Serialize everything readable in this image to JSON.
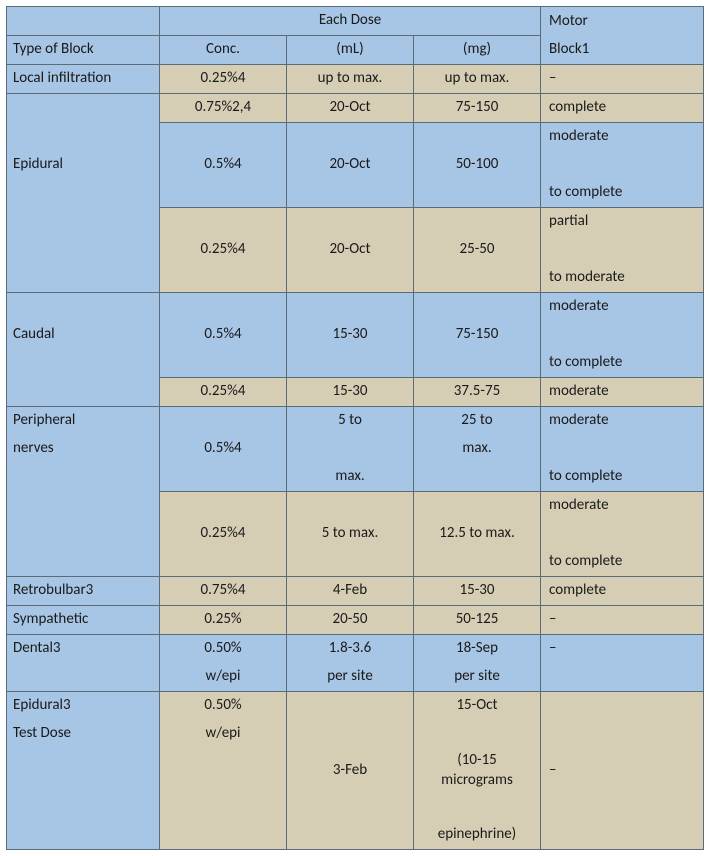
{
  "header": {
    "each_dose": "Each Dose",
    "motor": "Motor",
    "type": "Type of Block",
    "conc": "Conc.",
    "ml": "(mL)",
    "mg": "(mg)",
    "block1": "Block1"
  },
  "rows": {
    "local": {
      "type": "Local infiltration",
      "conc": "0.25%4",
      "ml": "up to max.",
      "mg": "up to max.",
      "motor": "–"
    },
    "epidural": {
      "label": "Epidural",
      "r1": {
        "conc": "0.75%2,4",
        "ml": "20-Oct",
        "mg": "75-150",
        "motor": "complete"
      },
      "r2": {
        "conc": "0.5%4",
        "ml": "20-Oct",
        "mg": "50-100",
        "motor_top": "moderate",
        "motor_bot": "to complete"
      },
      "r3": {
        "conc": "0.25%4",
        "ml": "20-Oct",
        "mg": "25-50",
        "motor_top": "partial",
        "motor_bot": "to moderate"
      }
    },
    "caudal": {
      "label": "Caudal",
      "r1": {
        "conc": "0.5%4",
        "ml": "15-30",
        "mg": "75-150",
        "motor_top": "moderate",
        "motor_bot": "to complete"
      },
      "r2": {
        "conc": "0.25%4",
        "ml": "15-30",
        "mg": "37.5-75",
        "motor": "moderate"
      }
    },
    "periph": {
      "label_top": "Peripheral",
      "label_bot": "nerves",
      "r1": {
        "conc": "0.5%4",
        "ml_top": "5 to",
        "ml_bot": "max.",
        "mg_top": "25 to",
        "mg_mid": "max.",
        "motor_top": "moderate",
        "motor_bot": "to complete"
      },
      "r2": {
        "conc": "0.25%4",
        "ml": "5 to max.",
        "mg": "12.5 to max.",
        "motor_top": "moderate",
        "motor_bot": "to complete"
      }
    },
    "retro": {
      "type": "Retrobulbar3",
      "conc": "0.75%4",
      "ml": "4-Feb",
      "mg": "15-30",
      "motor": "complete"
    },
    "symp": {
      "type": "Sympathetic",
      "conc": "0.25%",
      "ml": "20-50",
      "mg": "50-125",
      "motor": "–"
    },
    "dental": {
      "type": "Dental3",
      "conc_top": "0.50%",
      "conc_bot": "w/epi",
      "ml_top": "1.8-3.6",
      "ml_bot": "per site",
      "mg_top": "18-Sep",
      "mg_bot": "per site",
      "motor": "–"
    },
    "epi_test": {
      "type_top": "Epidural3",
      "type_bot": "Test Dose",
      "conc_top": "0.50%",
      "conc_bot": "w/epi",
      "ml": "3-Feb",
      "mg_top": "15-Oct",
      "mg_mid": "(10-15 micrograms",
      "mg_bot": "epinephrine)",
      "motor": "–"
    }
  },
  "colors": {
    "blue": "#a7c5e5",
    "tan": "#d6ceb4",
    "border": "#5b6b7a"
  }
}
